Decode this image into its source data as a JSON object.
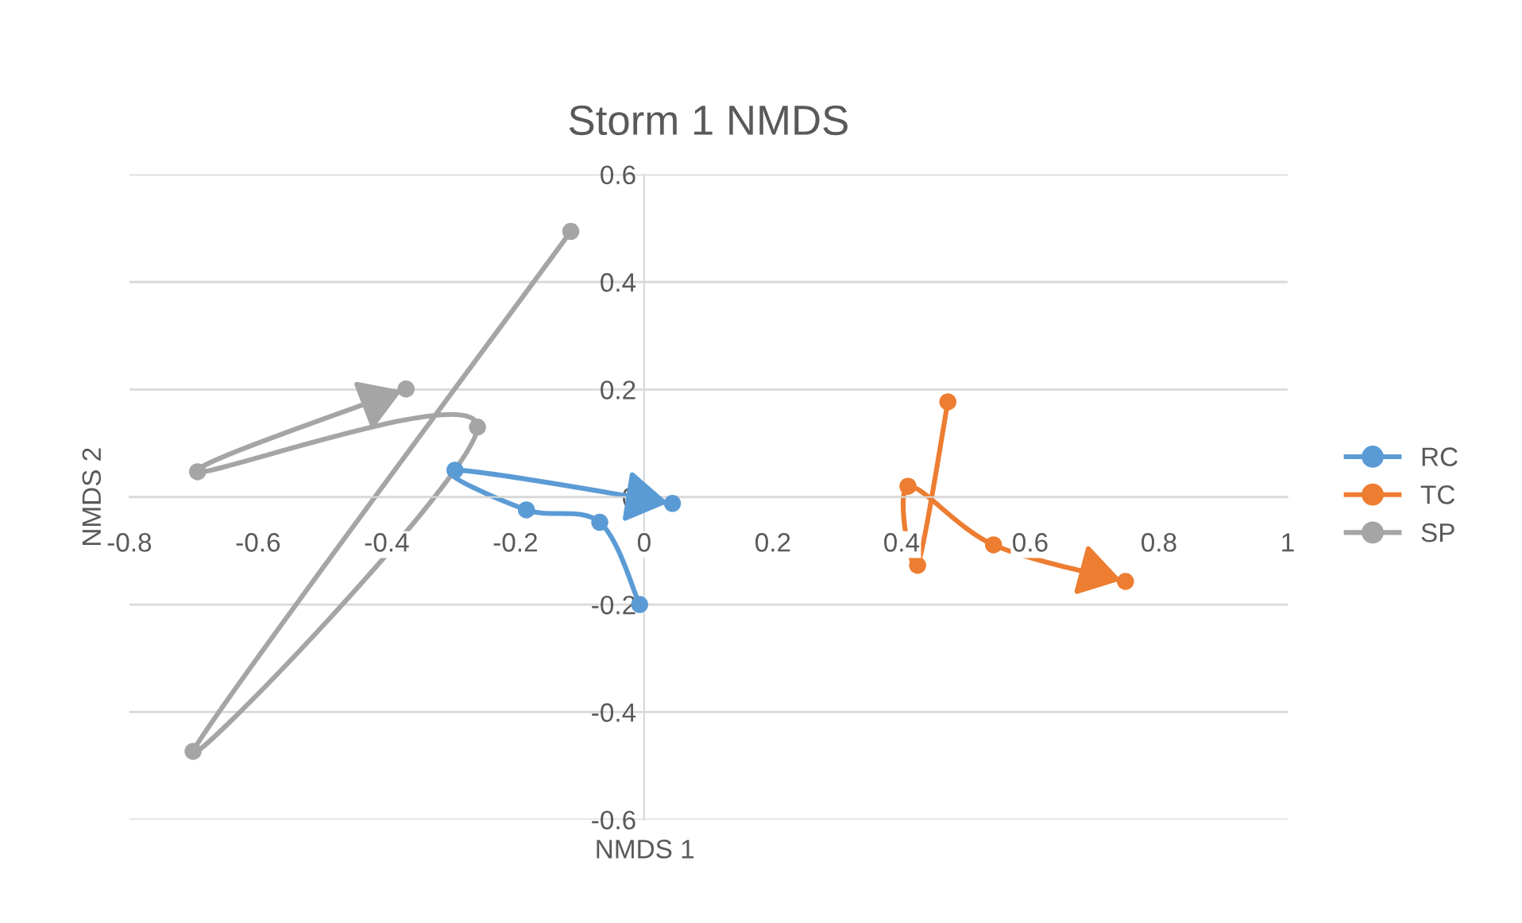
{
  "chart_data": {
    "type": "line",
    "title": "Storm 1 NMDS",
    "xlabel": "NMDS 1",
    "ylabel": "NMDS 2",
    "xlim": [
      -0.8,
      1
    ],
    "xticks": [
      -0.8,
      -0.6,
      -0.4,
      -0.2,
      0,
      0.2,
      0.4,
      0.6,
      0.8,
      1
    ],
    "ylim": [
      -0.6,
      0.6
    ],
    "yticks": [
      -0.6,
      -0.4,
      -0.2,
      0,
      0.2,
      0.4,
      0.6
    ],
    "grid": "y",
    "legend": "right",
    "marker": "circle",
    "line_style": "solid",
    "series": [
      {
        "name": "RC",
        "color": "#5b9bd5",
        "x": [
          -0.007,
          -0.069,
          -0.183,
          -0.294,
          0.044
        ],
        "values": [
          -0.2,
          -0.047,
          -0.024,
          0.05,
          -0.012
        ]
      },
      {
        "name": "TC",
        "color": "#ed7d31",
        "x": [
          0.472,
          0.425,
          0.41,
          0.543,
          0.748
        ],
        "values": [
          0.177,
          -0.127,
          0.02,
          -0.089,
          -0.157
        ]
      },
      {
        "name": "SP",
        "color": "#a5a5a5",
        "x": [
          -0.114,
          -0.701,
          -0.259,
          -0.694,
          -0.37
        ],
        "values": [
          0.494,
          -0.473,
          0.13,
          0.047,
          0.201
        ]
      }
    ]
  }
}
